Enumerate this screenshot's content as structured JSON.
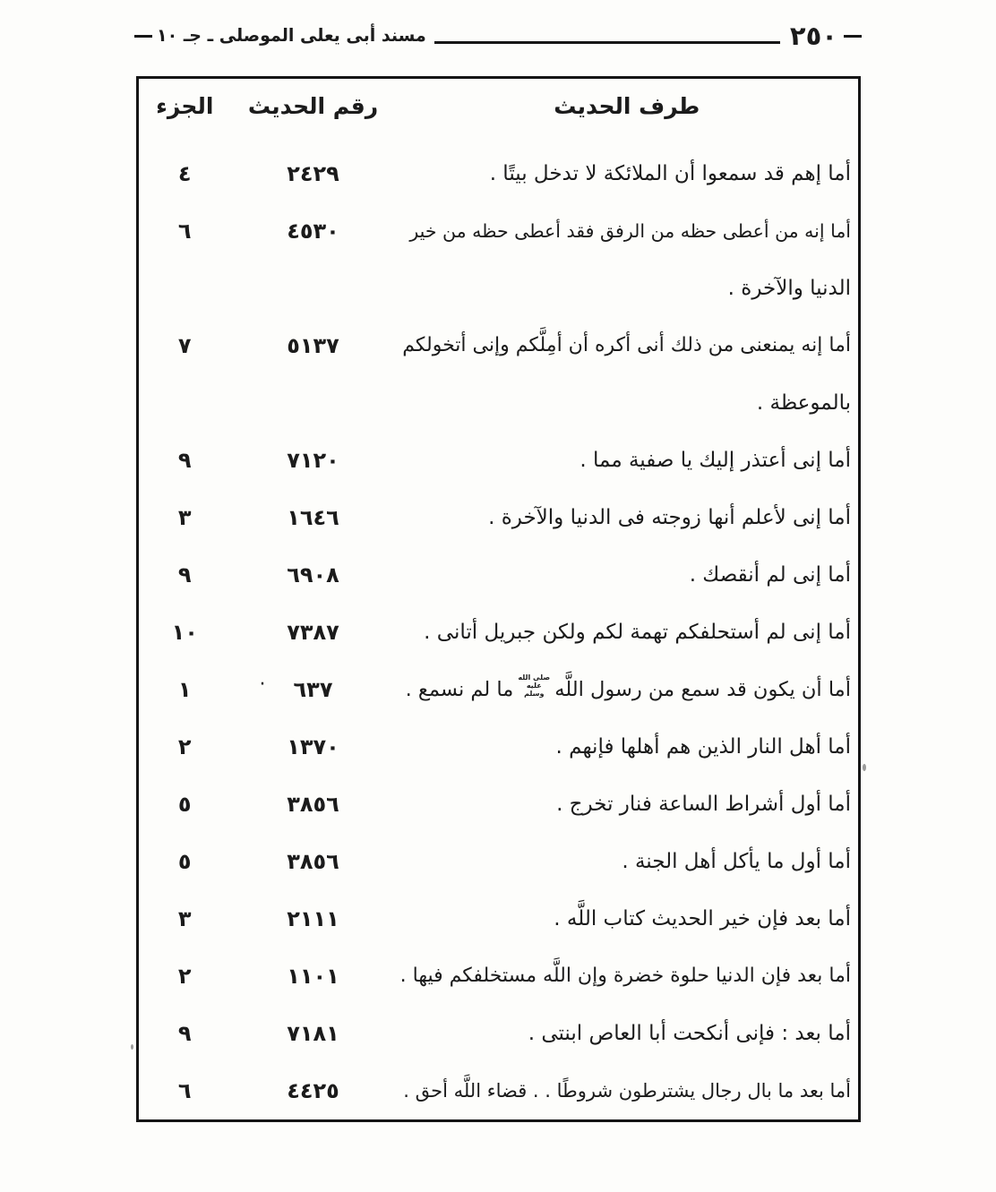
{
  "page": {
    "header": {
      "title": "مسند أبى يعلى الموصلى ـ جـ ١٠",
      "page_number": "٢٥٠"
    },
    "table": {
      "columns": [
        {
          "key": "tarf",
          "label": "طرف الحديث"
        },
        {
          "key": "raqm",
          "label": "رقم الحديث"
        },
        {
          "key": "juz",
          "label": "الجزء"
        }
      ],
      "rows": [
        {
          "lines": [
            "أما إهم قد سمعوا أن الملائكة لا تدخل بيتًا ."
          ],
          "number": "٢٤٢٩",
          "juz": "٤"
        },
        {
          "lines": [
            "أما إنه من أعطى حظه من الرفق فقد أعطى حظه من خير",
            "الدنيا والآخرة ."
          ],
          "number": "٤٥٣٠",
          "juz": "٦"
        },
        {
          "lines": [
            "أما إنه يمنعنى من ذلك أنى أكره أن أمِلَّكم وإنى أتخولكم",
            "بالموعظة ."
          ],
          "number": "٥١٣٧",
          "juz": "٧"
        },
        {
          "lines": [
            "أما إنى أعتذر إليك يا صفية مما ."
          ],
          "number": "٧١٢٠",
          "juz": "٩"
        },
        {
          "lines": [
            "أما إنى لأعلم أنها زوجته فى الدنيا والآخرة ."
          ],
          "number": "١٦٤٦",
          "juz": "٣"
        },
        {
          "lines": [
            "أما إنى لم أنقصك ."
          ],
          "number": "٦٩٠٨",
          "juz": "٩"
        },
        {
          "lines": [
            "أما إنى لم أستحلفكم تهمة لكم ولكن جبريل أتانى ."
          ],
          "number": "٧٣٨٧",
          "juz": "١٠"
        },
        {
          "segments": {
            "before": "أما أن يكون قد سمع من رسول اللَّه",
            "saw_mark": "صلى الله عليه وسلم",
            "after": "ما لم نسمع ."
          },
          "number": "٦٣٧",
          "stray_dot": "·",
          "juz": "١"
        },
        {
          "lines": [
            "أما أهل النار الذين هم أهلها فإنهم ."
          ],
          "number": "١٣٧٠",
          "juz": "٢"
        },
        {
          "lines": [
            "أما أول أشراط الساعة فنار تخرج ."
          ],
          "number": "٣٨٥٦",
          "juz": "٥"
        },
        {
          "lines": [
            "أما أول ما يأكل أهل الجنة ."
          ],
          "number": "٣٨٥٦",
          "juz": "٥"
        },
        {
          "lines": [
            "أما بعد فإن خير الحديث كتاب اللَّه ."
          ],
          "number": "٢١١١",
          "juz": "٣"
        },
        {
          "lines": [
            "أما بعد فإن الدنيا حلوة خضرة وإن اللَّه مستخلفكم فيها ."
          ],
          "number": "١١٠١",
          "juz": "٢"
        },
        {
          "lines": [
            "أما بعد : فإنى أنكحت أبا العاص ابنتى ."
          ],
          "number": "٧١٨١",
          "juz": "٩"
        },
        {
          "lines": [
            "أما بعد ما بال رجال يشترطون شروطًا . . قضاء اللَّه أحق ."
          ],
          "number": "٤٤٢٥",
          "juz": "٦"
        }
      ]
    },
    "colors": {
      "ink": "#1b1b1b",
      "paper": "#fdfdfb"
    }
  }
}
